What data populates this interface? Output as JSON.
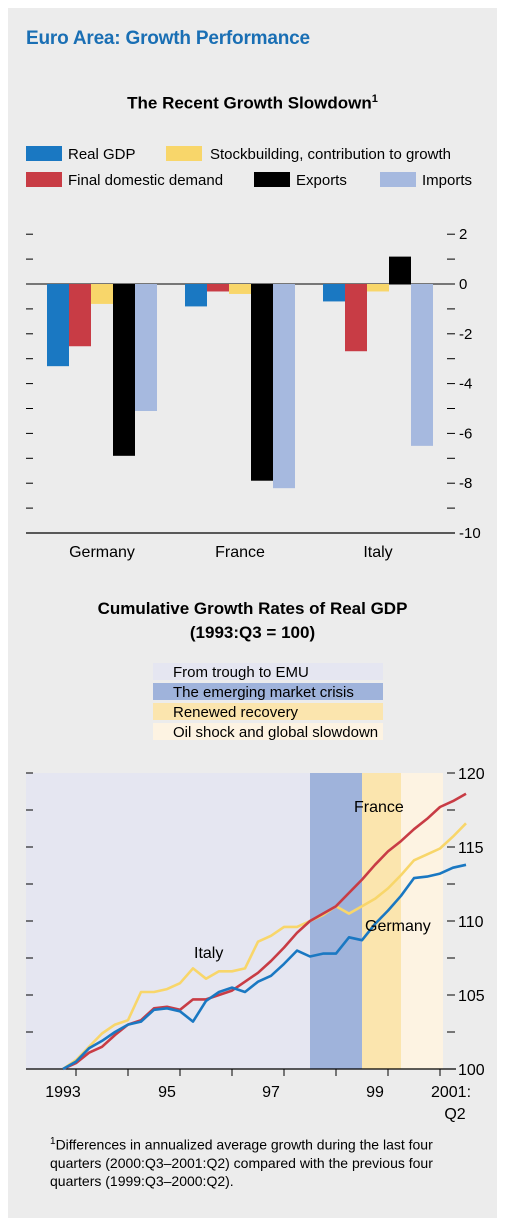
{
  "title": "Euro Area: Growth Performance",
  "colors": {
    "panel": "#ececec",
    "title": "#1a6fb4",
    "real_gdp": "#1a78c2",
    "final_domestic": "#c83c45",
    "stockbuilding": "#f8d66a",
    "exports": "#000000",
    "imports": "#a6b9df",
    "shade_trough": "#e5e6f1",
    "shade_crisis": "#9fb3db",
    "shade_recovery": "#fbe5ae",
    "shade_oil": "#fdf3e2",
    "line_france": "#c83c45",
    "line_italy": "#f8d66a",
    "line_germany": "#1a78c2"
  },
  "chart_data": [
    {
      "type": "bar",
      "title": "The Recent Growth Slowdown",
      "title_footnote_mark": "1",
      "categories": [
        "Germany",
        "France",
        "Italy"
      ],
      "series": [
        {
          "name": "Real GDP",
          "values": [
            -3.3,
            -0.9,
            -0.7
          ]
        },
        {
          "name": "Final domestic demand",
          "values": [
            -2.5,
            -0.3,
            -2.7
          ]
        },
        {
          "name": "Stockbuilding, contribution to growth",
          "values": [
            -0.8,
            -0.4,
            -0.3
          ]
        },
        {
          "name": "Exports",
          "values": [
            -6.9,
            -7.9,
            1.1
          ]
        },
        {
          "name": "Imports",
          "values": [
            -5.1,
            -8.2,
            -6.5
          ]
        }
      ],
      "ylim": [
        -10,
        2
      ],
      "yticks": [
        "2",
        "0",
        "-2",
        "-4",
        "-6",
        "-8",
        "-10"
      ],
      "legend_position": "top",
      "grid": false
    },
    {
      "type": "line",
      "title": "Cumulative Growth Rates of Real GDP",
      "subtitle": "(1993:Q3 = 100)",
      "x_start": "1993:Q3",
      "x_end": "2001:Q2",
      "xticks": [
        "1993",
        "95",
        "97",
        "99",
        "2001:",
        "Q2"
      ],
      "ylim": [
        100,
        120
      ],
      "yticks": [
        "120",
        "115",
        "110",
        "105",
        "100"
      ],
      "regions": [
        {
          "label": "From trough to EMU",
          "start": "1993:Q3",
          "end": "1998:Q2"
        },
        {
          "label": "The emerging market crisis",
          "start": "1998:Q2",
          "end": "1999:Q2"
        },
        {
          "label": "Renewed recovery",
          "start": "1999:Q2",
          "end": "2000:Q1"
        },
        {
          "label": "Oil shock and global slowdown",
          "start": "2000:Q1",
          "end": "2001:Q2"
        }
      ],
      "series": [
        {
          "name": "France",
          "values": [
            100,
            100.4,
            101.1,
            101.5,
            102.3,
            103.0,
            103.3,
            104.1,
            104.2,
            104.0,
            104.7,
            104.7,
            105.0,
            105.3,
            105.9,
            106.5,
            107.3,
            108.2,
            109.2,
            110.0,
            110.5,
            111.0,
            111.9,
            112.8,
            113.8,
            114.7,
            115.4,
            116.2,
            116.9,
            117.7,
            118.1,
            118.6
          ]
        },
        {
          "name": "Italy",
          "values": [
            100,
            100.6,
            101.5,
            102.4,
            103.0,
            103.3,
            105.2,
            105.2,
            105.4,
            105.8,
            106.8,
            106.1,
            106.6,
            106.6,
            106.8,
            108.6,
            109.0,
            109.6,
            109.6,
            110.0,
            110.4,
            111.0,
            110.5,
            111.0,
            111.5,
            112.2,
            113.1,
            114.1,
            114.5,
            114.9,
            115.7,
            116.6
          ]
        },
        {
          "name": "Germany",
          "values": [
            100,
            100.5,
            101.4,
            101.9,
            102.5,
            103.0,
            103.2,
            104.0,
            104.1,
            103.9,
            103.2,
            104.6,
            105.2,
            105.5,
            105.2,
            105.9,
            106.3,
            107.1,
            108.0,
            107.6,
            107.8,
            107.8,
            108.9,
            108.7,
            109.8,
            110.7,
            111.7,
            112.9,
            113.0,
            113.2,
            113.6,
            113.8
          ]
        }
      ],
      "series_labels_on_chart": [
        "France",
        "Italy",
        "Germany"
      ],
      "grid": false
    }
  ],
  "footnote": {
    "mark": "1",
    "text": "Differences in annualized average growth during the last four quarters (2000:Q3–2001:Q2) compared with the previous four quarters (1999:Q3–2000:Q2)."
  }
}
